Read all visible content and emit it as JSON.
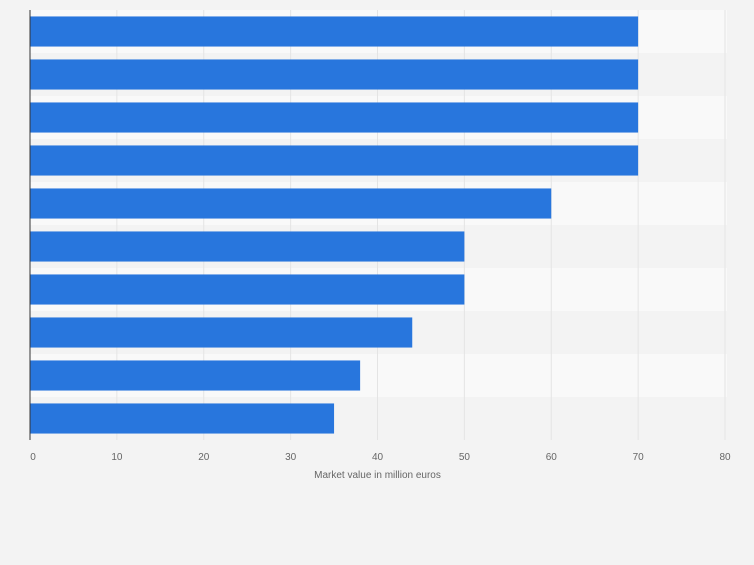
{
  "chart_data": {
    "type": "bar",
    "orientation": "horizontal",
    "categories": [
      "",
      "",
      "",
      "",
      "",
      "",
      "",
      "",
      "",
      ""
    ],
    "values": [
      70,
      70,
      70,
      70,
      60,
      50,
      50,
      44,
      38,
      35
    ],
    "title": "",
    "xlabel": "Market value in million euros",
    "ylabel": "",
    "xlim": [
      0,
      80
    ],
    "xticks": [
      0,
      10,
      20,
      30,
      40,
      50,
      60,
      70,
      80
    ],
    "grid": true,
    "legend": "none",
    "colors": {
      "bar": "#2876dd",
      "band_light": "#f9f9f9",
      "band_dark": "#f3f3f3",
      "grid": "#e4e4e4",
      "axis": "#333333",
      "tick_text": "#666666"
    }
  }
}
